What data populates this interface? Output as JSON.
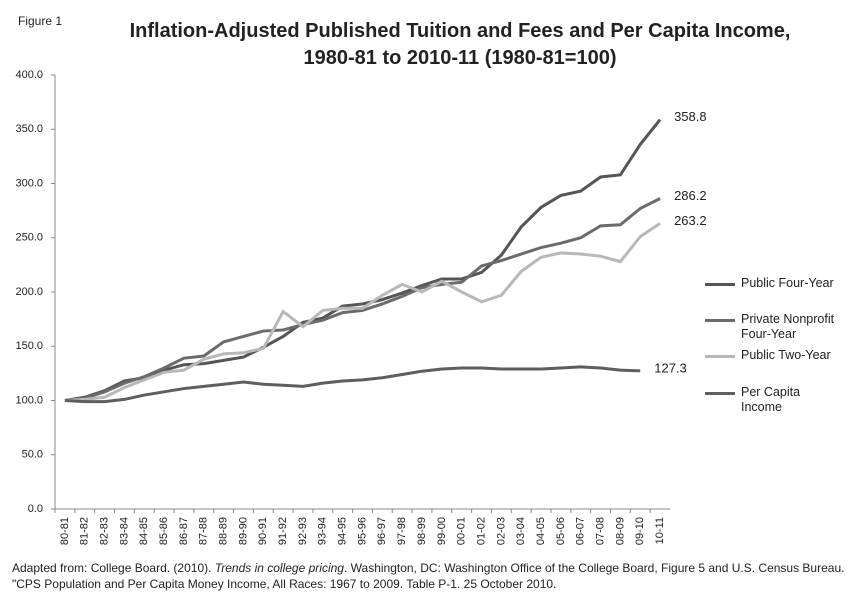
{
  "figure_label": "Figure 1",
  "chart_data": {
    "type": "line",
    "title": [
      "Inflation-Adjusted Published Tuition and Fees and Per Capita Income,",
      "1980-81 to 2010-11 (1980-81=100)"
    ],
    "categories": [
      "80-81",
      "81-82",
      "82-83",
      "83-84",
      "84-85",
      "85-86",
      "86-87",
      "87-88",
      "88-89",
      "89-90",
      "90-91",
      "91-92",
      "92-93",
      "93-94",
      "94-95",
      "95-96",
      "96-97",
      "97-98",
      "98-99",
      "99-00",
      "00-01",
      "01-02",
      "02-03",
      "03-04",
      "04-05",
      "05-06",
      "06-07",
      "07-08",
      "08-09",
      "09-10",
      "10-11"
    ],
    "ylim": [
      0,
      400
    ],
    "yticks": [
      {
        "value": 0,
        "label": "0.0"
      },
      {
        "value": 50,
        "label": "50.0"
      },
      {
        "value": 100,
        "label": "100.0"
      },
      {
        "value": 150,
        "label": "150.0"
      },
      {
        "value": 200,
        "label": "200.0"
      },
      {
        "value": 250,
        "label": "250.0"
      },
      {
        "value": 300,
        "label": "300.0"
      },
      {
        "value": 350,
        "label": "350.0"
      },
      {
        "value": 400,
        "label": "400.0"
      }
    ],
    "grid": false,
    "legend": "right",
    "series": [
      {
        "name": "Public Four-Year",
        "color": "#555555",
        "values": [
          100,
          103,
          109,
          118,
          121,
          128,
          133,
          134,
          137,
          140,
          149,
          159,
          172,
          176,
          187,
          189,
          193,
          199,
          206,
          212,
          212,
          218,
          234,
          260,
          278,
          289,
          293,
          306,
          308,
          336,
          358.8
        ]
      },
      {
        "name": "Private Nonprofit Four-Year",
        "color": "#6b6b6b",
        "values": [
          100,
          102,
          108,
          116,
          122,
          130,
          139,
          141,
          154,
          159,
          164,
          165,
          170,
          174,
          181,
          183,
          189,
          196,
          204,
          207,
          209,
          224,
          229,
          235,
          241,
          245,
          250,
          261,
          262,
          277,
          286.2
        ]
      },
      {
        "name": "Public Two-Year",
        "color": "#b8b8b8",
        "values": [
          100,
          101,
          103,
          112,
          119,
          126,
          128,
          138,
          143,
          144,
          148,
          182,
          168,
          183,
          185,
          185,
          197,
          207,
          200,
          210,
          200,
          191,
          197,
          219,
          232,
          236,
          235,
          233,
          228,
          251,
          263.2
        ]
      },
      {
        "name": "Per Capita Income",
        "color": "#5e5e5e",
        "values": [
          100,
          99,
          99,
          101,
          105,
          108,
          111,
          113,
          115,
          117,
          115,
          114,
          113,
          116,
          118,
          119,
          121,
          124,
          127,
          129,
          130,
          130,
          129,
          129,
          129,
          130,
          131,
          130,
          128,
          127.3,
          null
        ]
      }
    ]
  },
  "source": [
    "Adapted from: College Board. (2010). ",
    "Trends in college pricing",
    ". Washington, DC: Washington Office of the College Board, Figure 5 and U.S. Census Bureau.  \"CPS Population and Per Capita Money Income, All Races:  1967 to 2009.  Table P-1.  25 October 2010."
  ]
}
